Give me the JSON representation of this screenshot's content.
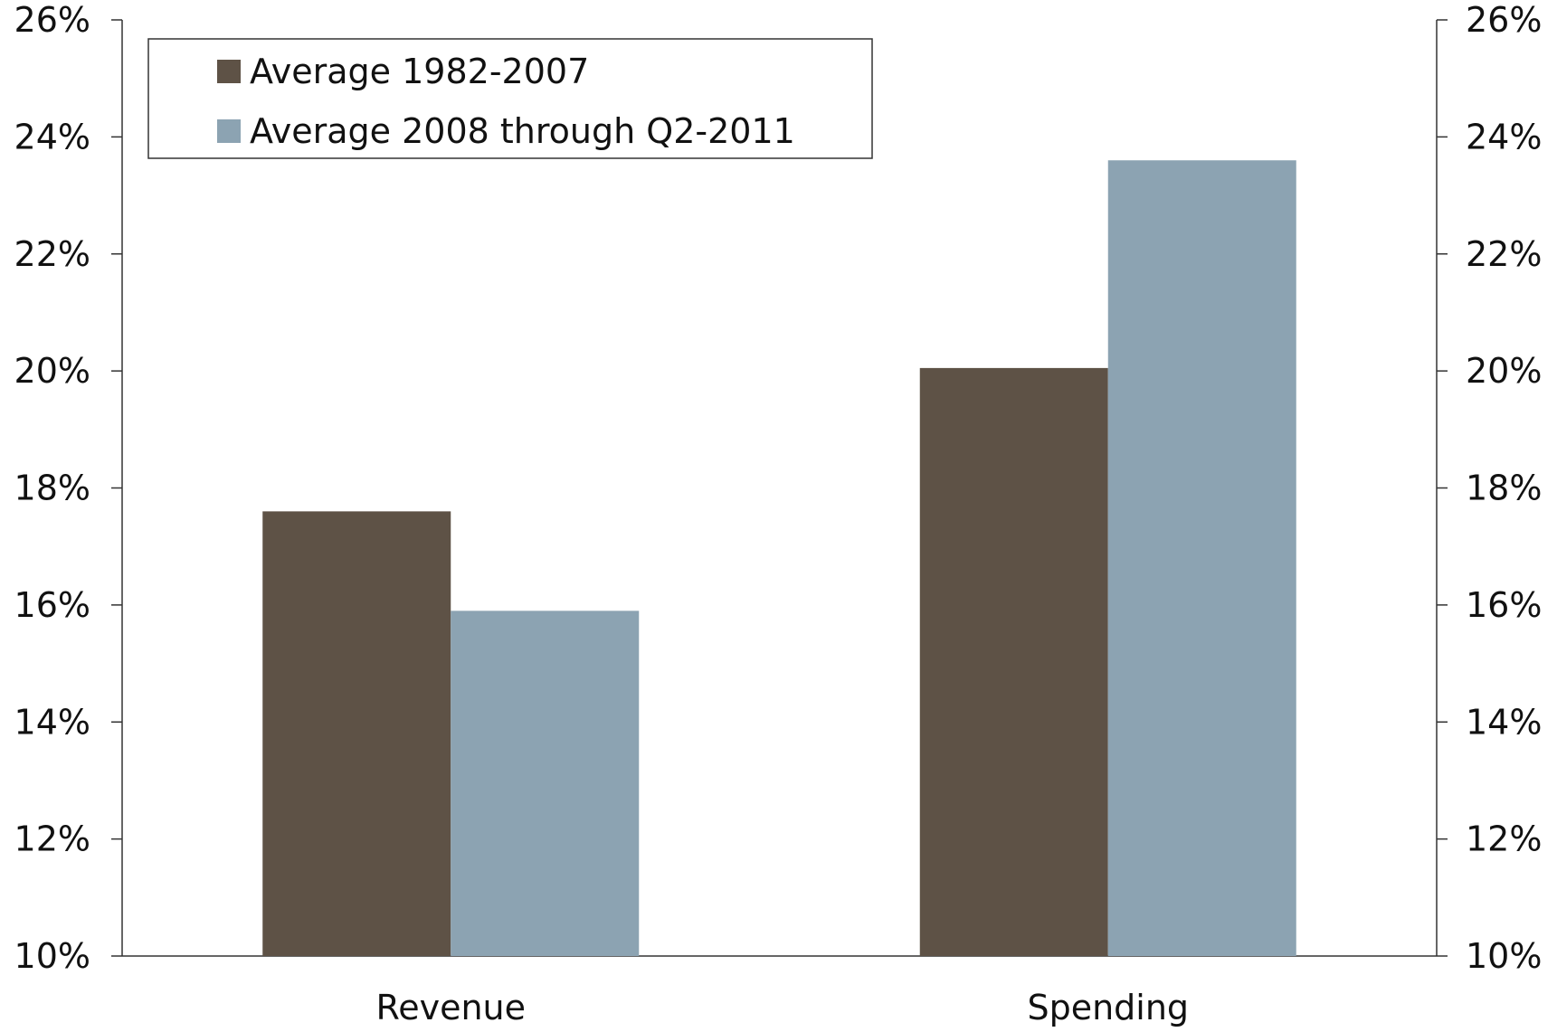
{
  "chart_data": {
    "type": "bar",
    "categories": [
      "Revenue",
      "Spending"
    ],
    "series": [
      {
        "name": "Average 1982-2007",
        "values": [
          17.6,
          20.05
        ],
        "color": "#5e5246"
      },
      {
        "name": "Average 2008 through Q2-2011",
        "values": [
          15.9,
          23.6
        ],
        "color": "#8ca3b2"
      }
    ],
    "ylim": [
      10,
      26
    ],
    "yticks": [
      10,
      12,
      14,
      16,
      18,
      20,
      22,
      24,
      26
    ],
    "ytick_labels": [
      "10%",
      "12%",
      "14%",
      "16%",
      "18%",
      "20%",
      "22%",
      "24%",
      "26%"
    ],
    "right_axis_mirror": true,
    "grid": false,
    "legend_position": "top-left",
    "title": "",
    "xlabel": "",
    "ylabel": ""
  }
}
